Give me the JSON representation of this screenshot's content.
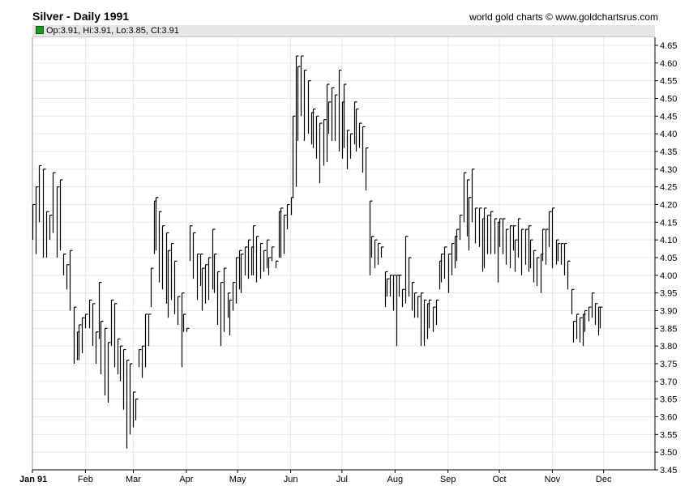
{
  "header": {
    "title": "Silver - Daily 1991",
    "credit": "world gold charts © www.goldchartsrus.com",
    "ohlc_text": "Op:3.91, Hi:3.91, Lo:3.85, Cl:3.91",
    "ohlc_swatch_color": "#1a9a1a"
  },
  "chart_data": {
    "type": "ohlc",
    "title": "Silver - Daily 1991",
    "xlabel": "",
    "ylabel": "",
    "ylim": [
      3.45,
      4.68
    ],
    "y_ticks": [
      "3.45",
      "3.50",
      "3.55",
      "3.60",
      "3.65",
      "3.70",
      "3.75",
      "3.80",
      "3.85",
      "3.90",
      "3.95",
      "4.00",
      "4.05",
      "4.10",
      "4.15",
      "4.20",
      "4.25",
      "4.30",
      "4.35",
      "4.40",
      "4.45",
      "4.50",
      "4.55",
      "4.60",
      "4.65"
    ],
    "x_range": [
      0,
      364
    ],
    "x_ticks": [
      {
        "label": "Jan 91",
        "day": 0
      },
      {
        "label": "Feb",
        "day": 31
      },
      {
        "label": "Mar",
        "day": 59
      },
      {
        "label": "Apr",
        "day": 90
      },
      {
        "label": "May",
        "day": 120
      },
      {
        "label": "Jun",
        "day": 151
      },
      {
        "label": "Jul",
        "day": 181
      },
      {
        "label": "Aug",
        "day": 212
      },
      {
        "label": "Sep",
        "day": 243
      },
      {
        "label": "Oct",
        "day": 273
      },
      {
        "label": "Nov",
        "day": 304
      },
      {
        "label": "Dec",
        "day": 334
      }
    ],
    "grid": true,
    "bar_color": "#000000",
    "grid_color": "#e8e8e8",
    "series": [
      {
        "points": [
          [
            0,
            4.2,
            4.1
          ],
          [
            2,
            4.25,
            4.06
          ],
          [
            4,
            4.31,
            4.15
          ],
          [
            6,
            4.3,
            4.05
          ],
          [
            8,
            4.18,
            4.05
          ],
          [
            10,
            4.17,
            4.1
          ],
          [
            12,
            4.29,
            4.12
          ],
          [
            14,
            4.25,
            4.05
          ],
          [
            16,
            4.27,
            4.07
          ],
          [
            18,
            4.06,
            4.0
          ],
          [
            20,
            4.03,
            3.96
          ],
          [
            22,
            4.07,
            3.9
          ],
          [
            24,
            3.91,
            3.75
          ],
          [
            26,
            3.84,
            3.76
          ],
          [
            27,
            3.86,
            3.76
          ],
          [
            29,
            3.88,
            3.78
          ],
          [
            31,
            3.89,
            3.85
          ],
          [
            33,
            3.93,
            3.85
          ],
          [
            35,
            3.92,
            3.8
          ],
          [
            37,
            3.84,
            3.75
          ],
          [
            39,
            3.98,
            3.82
          ],
          [
            40,
            3.87,
            3.72
          ],
          [
            42,
            3.85,
            3.66
          ],
          [
            44,
            3.81,
            3.64
          ],
          [
            46,
            3.93,
            3.8
          ],
          [
            48,
            3.92,
            3.74
          ],
          [
            50,
            3.82,
            3.72
          ],
          [
            51,
            3.8,
            3.7
          ],
          [
            53,
            3.79,
            3.62
          ],
          [
            55,
            3.76,
            3.51
          ],
          [
            57,
            3.75,
            3.55
          ],
          [
            59,
            3.67,
            3.57
          ],
          [
            60,
            3.65,
            3.59
          ],
          [
            62,
            3.79,
            3.74
          ],
          [
            64,
            3.8,
            3.71
          ],
          [
            66,
            3.89,
            3.74
          ],
          [
            68,
            3.89,
            3.8
          ],
          [
            69,
            4.02,
            3.91
          ],
          [
            71,
            4.21,
            4.06
          ],
          [
            72,
            4.22,
            4.07
          ],
          [
            74,
            4.18,
            3.98
          ],
          [
            76,
            4.14,
            3.96
          ],
          [
            78,
            4.12,
            3.92
          ],
          [
            79,
            4.07,
            3.88
          ],
          [
            81,
            4.09,
            3.93
          ],
          [
            83,
            4.04,
            3.89
          ],
          [
            85,
            3.94,
            3.86
          ],
          [
            87,
            3.95,
            3.74
          ],
          [
            88,
            3.89,
            3.84
          ],
          [
            90,
            3.85,
            3.84
          ],
          [
            92,
            4.14,
            4.04
          ],
          [
            94,
            4.12,
            3.99
          ],
          [
            96,
            4.06,
            3.93
          ],
          [
            98,
            4.06,
            3.97
          ],
          [
            99,
            4.02,
            3.9
          ],
          [
            101,
            4.03,
            3.92
          ],
          [
            103,
            4.05,
            3.93
          ],
          [
            105,
            4.13,
            3.96
          ],
          [
            106,
            4.06,
            3.95
          ],
          [
            108,
            4.01,
            3.86
          ],
          [
            110,
            3.98,
            3.8
          ],
          [
            112,
            4.02,
            3.84
          ],
          [
            114,
            3.95,
            3.88
          ],
          [
            115,
            3.93,
            3.83
          ],
          [
            117,
            3.98,
            3.9
          ],
          [
            119,
            4.05,
            3.92
          ],
          [
            121,
            4.07,
            3.96
          ],
          [
            122,
            4.06,
            3.95
          ],
          [
            124,
            4.08,
            4.0
          ],
          [
            126,
            4.1,
            3.99
          ],
          [
            128,
            4.08,
            4.0
          ],
          [
            129,
            4.14,
            4.0
          ],
          [
            131,
            4.11,
            3.98
          ],
          [
            133,
            4.09,
            3.99
          ],
          [
            135,
            4.07,
            4.01
          ],
          [
            137,
            4.1,
            4.02
          ],
          [
            138,
            4.05,
            4.0
          ],
          [
            140,
            4.08,
            4.04
          ],
          [
            142,
            4.04,
            4.02
          ],
          [
            144,
            4.18,
            4.05
          ],
          [
            145,
            4.19,
            4.05
          ],
          [
            147,
            4.17,
            4.06
          ],
          [
            149,
            4.2,
            4.13
          ],
          [
            151,
            4.22,
            4.17
          ],
          [
            152,
            4.45,
            4.22
          ],
          [
            154,
            4.62,
            4.25
          ],
          [
            155,
            4.59,
            4.38
          ],
          [
            157,
            4.62,
            4.45
          ],
          [
            159,
            4.58,
            4.38
          ],
          [
            161,
            4.55,
            4.4
          ],
          [
            163,
            4.46,
            4.37
          ],
          [
            164,
            4.47,
            4.36
          ],
          [
            166,
            4.45,
            4.33
          ],
          [
            168,
            4.43,
            4.26
          ],
          [
            170,
            4.44,
            4.31
          ],
          [
            172,
            4.54,
            4.32
          ],
          [
            173,
            4.49,
            4.4
          ],
          [
            175,
            4.53,
            4.38
          ],
          [
            177,
            4.51,
            4.38
          ],
          [
            179,
            4.58,
            4.35
          ],
          [
            181,
            4.49,
            4.33
          ],
          [
            182,
            4.54,
            4.36
          ],
          [
            184,
            4.41,
            4.3
          ],
          [
            186,
            4.4,
            4.33
          ],
          [
            188,
            4.49,
            4.37
          ],
          [
            189,
            4.47,
            4.35
          ],
          [
            191,
            4.43,
            4.36
          ],
          [
            193,
            4.42,
            4.29
          ],
          [
            195,
            4.36,
            4.24
          ],
          [
            197,
            4.21,
            4.0
          ],
          [
            198,
            4.11,
            4.05
          ],
          [
            200,
            4.1,
            4.02
          ],
          [
            202,
            4.09,
            4.03
          ],
          [
            204,
            4.08,
            4.05
          ],
          [
            206,
            4.01,
            3.91
          ],
          [
            207,
            3.99,
            3.94
          ],
          [
            209,
            4.0,
            3.94
          ],
          [
            211,
            4.0,
            3.9
          ],
          [
            213,
            4.0,
            3.8
          ],
          [
            214,
            4.0,
            3.94
          ],
          [
            216,
            3.96,
            3.91
          ],
          [
            218,
            4.11,
            3.92
          ],
          [
            220,
            4.05,
            3.94
          ],
          [
            222,
            3.98,
            3.9
          ],
          [
            223,
            3.95,
            3.88
          ],
          [
            225,
            3.94,
            3.88
          ],
          [
            227,
            3.95,
            3.8
          ],
          [
            229,
            3.93,
            3.8
          ],
          [
            231,
            3.92,
            3.82
          ],
          [
            232,
            3.93,
            3.85
          ],
          [
            234,
            3.91,
            3.84
          ],
          [
            236,
            3.93,
            3.86
          ],
          [
            238,
            4.04,
            3.96
          ],
          [
            239,
            4.06,
            3.98
          ],
          [
            241,
            4.08,
            3.99
          ],
          [
            243,
            4.06,
            3.95
          ],
          [
            245,
            4.09,
            4.0
          ],
          [
            247,
            4.11,
            4.02
          ],
          [
            248,
            4.13,
            4.04
          ],
          [
            250,
            4.17,
            4.1
          ],
          [
            252,
            4.29,
            4.15
          ],
          [
            254,
            4.27,
            4.11
          ],
          [
            255,
            4.22,
            4.07
          ],
          [
            257,
            4.3,
            4.15
          ],
          [
            259,
            4.19,
            4.09
          ],
          [
            261,
            4.19,
            4.08
          ],
          [
            263,
            4.16,
            4.01
          ],
          [
            264,
            4.19,
            4.02
          ],
          [
            266,
            4.17,
            4.06
          ],
          [
            268,
            4.18,
            4.06
          ],
          [
            270,
            4.16,
            4.06
          ],
          [
            272,
            4.15,
            3.98
          ],
          [
            273,
            4.16,
            4.08
          ],
          [
            275,
            4.16,
            4.06
          ],
          [
            277,
            4.13,
            4.03
          ],
          [
            279,
            4.14,
            4.02
          ],
          [
            281,
            4.14,
            4.07
          ],
          [
            282,
            4.1,
            4.01
          ],
          [
            284,
            4.16,
            4.05
          ],
          [
            286,
            4.13,
            4.0
          ],
          [
            288,
            4.13,
            4.03
          ],
          [
            290,
            4.14,
            4.01
          ],
          [
            291,
            4.1,
            4.02
          ],
          [
            293,
            4.07,
            3.98
          ],
          [
            295,
            4.05,
            3.97
          ],
          [
            297,
            4.06,
            3.95
          ],
          [
            298,
            4.13,
            4.04
          ],
          [
            300,
            4.13,
            4.03
          ],
          [
            302,
            4.18,
            4.08
          ],
          [
            304,
            4.19,
            4.02
          ],
          [
            306,
            4.1,
            4.03
          ],
          [
            307,
            4.09,
            4.04
          ],
          [
            309,
            4.09,
            4.03
          ],
          [
            311,
            4.09,
            4.0
          ],
          [
            313,
            4.04,
            3.96
          ],
          [
            315,
            3.96,
            3.89
          ],
          [
            316,
            3.87,
            3.81
          ],
          [
            318,
            3.89,
            3.82
          ],
          [
            320,
            3.88,
            3.81
          ],
          [
            322,
            3.89,
            3.8
          ],
          [
            323,
            3.9,
            3.84
          ],
          [
            325,
            3.91,
            3.87
          ],
          [
            327,
            3.95,
            3.88
          ],
          [
            329,
            3.92,
            3.86
          ],
          [
            331,
            3.91,
            3.83
          ],
          [
            332,
            3.91,
            3.85
          ]
        ]
      }
    ]
  }
}
